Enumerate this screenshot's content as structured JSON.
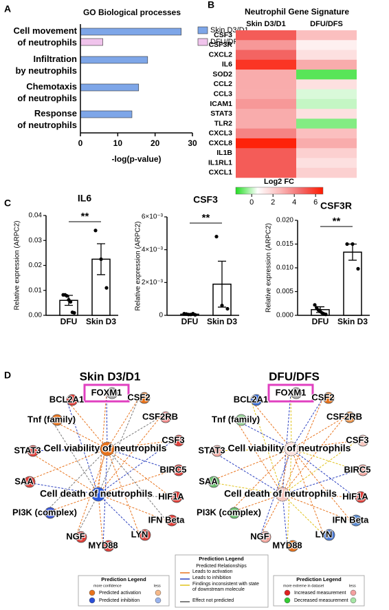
{
  "chart_data": [
    {
      "panel": "A",
      "type": "hbar",
      "title": "GO Biological processes",
      "categories": [
        "Cell movement\nof neutrophils",
        "Infiltration\nby neutrophils",
        "Chemotaxis\nof neutrophils",
        "Response\nof neutrophils"
      ],
      "series": [
        {
          "name": "Skin D3/D1",
          "color": "#7ea6e8",
          "values": [
            27,
            18,
            15.6,
            13.8
          ]
        },
        {
          "name": "DFU/DFS",
          "color": "#f0c4ec",
          "values": [
            6,
            null,
            null,
            null
          ]
        }
      ],
      "xlabel": "-log(p-value)",
      "xlim": [
        0,
        30
      ],
      "xticks": [
        0,
        10,
        20,
        30
      ],
      "legend": "upper right"
    },
    {
      "panel": "B",
      "type": "heatmap",
      "title": "Neutrophil Gene Signature",
      "columns": [
        "Skin D3/D1",
        "DFU/DFS"
      ],
      "rows": [
        "CSF3",
        "CSF3R",
        "CXCL2",
        "IL6",
        "SOD2",
        "CCL2",
        "CCL3",
        "ICAM1",
        "STAT3",
        "TLR2",
        "CXCL3",
        "CXCL8",
        "IL1B",
        "IL1RL1",
        "CXCL1"
      ],
      "values": [
        [
          5,
          2.5
        ],
        [
          3.5,
          1
        ],
        [
          4.8,
          1.5
        ],
        [
          6,
          3
        ],
        [
          3,
          -1
        ],
        [
          3,
          1.5
        ],
        [
          3,
          0.2
        ],
        [
          3.5,
          0
        ],
        [
          3,
          1.5
        ],
        [
          3,
          -0.6
        ],
        [
          4,
          2.5
        ],
        [
          6.5,
          3
        ],
        [
          5,
          2
        ],
        [
          5,
          1.5
        ],
        [
          5,
          2
        ]
      ],
      "colorbar_label": "Log2 FC",
      "clim": [
        -1.5,
        6.7
      ],
      "colorbar_ticks": [
        0,
        2,
        4,
        6
      ],
      "colors": [
        "#22dd22",
        "#ffffff",
        "#fbbcbc",
        "#f26a6a",
        "#ff1a00"
      ]
    },
    {
      "panel": "C",
      "type": "bar",
      "title": "IL6",
      "categories": [
        "DFU",
        "Skin D3"
      ],
      "color": "#ffffff",
      "values": [
        0.006,
        0.0225
      ],
      "errors": [
        0.002,
        0.0062
      ],
      "points": [
        [
          0.0082,
          0.0082,
          0.0078,
          0.0062,
          0.0054,
          0.0012,
          0.001
        ],
        [
          0.034,
          0.0225,
          0.011
        ]
      ],
      "annotation": "**",
      "ylabel": "Relative expression (ARPC2)",
      "ylim": [
        0,
        0.04
      ],
      "yticks": [
        {
          "value": 0,
          "label": "0.00"
        },
        0.01,
        0.02,
        0.03,
        0.04
      ]
    },
    {
      "type": "bar",
      "title": "CSF3",
      "categories": [
        "DFU",
        "Skin D3"
      ],
      "color": "#ffffff",
      "values": [
        7e-05,
        0.0019
      ],
      "errors": [
        1e-05,
        0.0014
      ],
      "points": [
        [
          0.0001,
          8e-05,
          5e-05,
          5e-05,
          0.0001,
          3e-05
        ],
        [
          0.0048,
          0.0006,
          0.0004
        ]
      ],
      "annotation": "**",
      "ylabel": "Relative expression (ARPC2)",
      "ylim": [
        0,
        0.006
      ],
      "yticks": [
        0,
        {
          "value": 0.002,
          "label": "2×10⁻³"
        },
        {
          "value": 0.004,
          "label": "4×10⁻³"
        },
        {
          "value": 0.006,
          "label": "6×10⁻³"
        }
      ]
    },
    {
      "type": "bar",
      "title": "CSF3R",
      "categories": [
        "DFU",
        "Skin D3"
      ],
      "color": "#ffffff",
      "values": [
        0.0012,
        0.0133
      ],
      "errors": [
        0.0006,
        0.0017
      ],
      "points": [
        [
          0.0022,
          0.0016,
          0.0011,
          0.0008,
          0.0005,
          0.0003,
          0.0002
        ],
        [
          0.015,
          0.015,
          0.0098
        ]
      ],
      "annotation": "**",
      "ylabel": "Relative expression (ARPC2)",
      "ylim": [
        0,
        0.02
      ],
      "yticks": [
        {
          "value": 0,
          "label": "0.000"
        },
        0.005,
        {
          "value": 0.01,
          "label": "0.010"
        },
        0.015,
        {
          "value": 0.02,
          "label": "0.020"
        }
      ]
    }
  ],
  "network_panel": {
    "panel": "D",
    "networks": [
      {
        "title": "Skin D3/D1",
        "nodes": [
          {
            "label": "BCL2A1",
            "color": "#e0403a"
          },
          {
            "label": "FOXM1",
            "color": "#aaaaaa"
          },
          {
            "label": "CSF2",
            "color": "#e8731c"
          },
          {
            "label": "CSF2RB",
            "color": "#f08a8a"
          },
          {
            "label": "CSF3",
            "color": "#e0403a"
          },
          {
            "label": "BIRC5",
            "color": "#e0403a"
          },
          {
            "label": "HIF1A",
            "color": "#e0403a"
          },
          {
            "label": "IFN Beta",
            "color": "#e0403a"
          },
          {
            "label": "LYN",
            "color": "#e0403a"
          },
          {
            "label": "MYD88",
            "color": "#e0403a"
          },
          {
            "label": "NGF",
            "color": "#e0403a"
          },
          {
            "label": "PI3K (complex)",
            "color": "#3a55d8"
          },
          {
            "label": "SAA",
            "color": "#e0403a"
          },
          {
            "label": "STAT3",
            "color": "#e0403a"
          },
          {
            "label": "Tnf (family)",
            "color": "#e8731c"
          }
        ],
        "functions": [
          {
            "label": "Cell viability of neutrophils",
            "color": "#e8731c"
          },
          {
            "label": "Cell death of neutrophils",
            "color": "#2a5ae0"
          }
        ]
      },
      {
        "title": "DFU/DFS",
        "nodes": [
          {
            "label": "BCL2A1",
            "color": "#3a6fd8"
          },
          {
            "label": "FOXM1",
            "color": "#aaaaaa"
          },
          {
            "label": "CSF2",
            "color": "#e8731c"
          },
          {
            "label": "CSF2RB",
            "color": "#e8924a"
          },
          {
            "label": "CSF3",
            "color": "#f8c8c0"
          },
          {
            "label": "BIRC5",
            "color": "#f4a8a0"
          },
          {
            "label": "HIF1A",
            "color": "#e0403a"
          },
          {
            "label": "IFN Beta",
            "color": "#5b8bd0"
          },
          {
            "label": "LYN",
            "color": "#4a7ad8"
          },
          {
            "label": "MYD88",
            "color": "#e8731c"
          },
          {
            "label": "NGF",
            "color": "#f4a8a0"
          },
          {
            "label": "PI3K (complex)",
            "color": "#6cc070"
          },
          {
            "label": "SAA",
            "color": "#6cc070"
          },
          {
            "label": "STAT3",
            "color": "#f4a8a0"
          },
          {
            "label": "Tnf (family)",
            "color": "#9ad49a"
          }
        ],
        "functions": [
          {
            "label": "Cell viability of neutrophils",
            "color": "#fde4e0"
          },
          {
            "label": "Cell death of neutrophils",
            "color": "#f8c8c0"
          }
        ]
      }
    ],
    "legends": [
      {
        "title": "Prediction Legend",
        "scale": [
          "more confidence",
          "less"
        ],
        "items": [
          "Predicted activation",
          "Predicted inhibition"
        ]
      },
      {
        "title": "Prediction Legend",
        "subtitle": "Predicted Relationships",
        "items": [
          "Leads to activation",
          "Leads to inhibition",
          "Findings inconsistent with state of downstream molecule",
          "Effect not predicted"
        ]
      },
      {
        "title": "Prediction Legend",
        "scale": [
          "more extreme in dataset",
          "less"
        ],
        "items": [
          "Increased measurement",
          "Decreased measurement"
        ]
      }
    ]
  }
}
